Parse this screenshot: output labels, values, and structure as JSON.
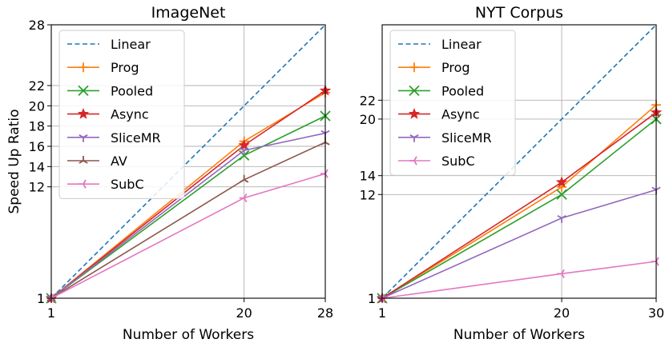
{
  "chart_data": [
    {
      "type": "line",
      "title": "ImageNet",
      "xlabel": "Number of Workers",
      "ylabel": "Speed Up Ratio",
      "x": [
        1,
        20,
        28
      ],
      "xlim": [
        1,
        28
      ],
      "ylim": [
        1,
        28
      ],
      "xticks": [
        "1",
        "20",
        "28"
      ],
      "yticks": [
        "1",
        "12",
        "14",
        "16",
        "18",
        "20",
        "22",
        "28"
      ],
      "grid": true,
      "legend_position": "upper-left",
      "series": [
        {
          "name": "Linear",
          "color": "#1f77b4",
          "dashed": true,
          "marker": "none",
          "values": [
            1,
            20,
            28
          ]
        },
        {
          "name": "Prog",
          "color": "#ff7f0e",
          "marker": "plus",
          "values": [
            1,
            16.5,
            21.3
          ]
        },
        {
          "name": "Pooled",
          "color": "#2ca02c",
          "marker": "x",
          "values": [
            1,
            15.1,
            19.0
          ]
        },
        {
          "name": "Async",
          "color": "#d62728",
          "marker": "star",
          "values": [
            1,
            16.1,
            21.5
          ]
        },
        {
          "name": "SliceMR",
          "color": "#9467bd",
          "marker": "tri-down",
          "values": [
            1,
            15.6,
            17.3
          ]
        },
        {
          "name": "AV",
          "color": "#8c564b",
          "marker": "tri-up",
          "values": [
            1,
            12.7,
            16.4
          ]
        },
        {
          "name": "SubC",
          "color": "#e377c2",
          "marker": "tri-left",
          "values": [
            1,
            10.9,
            13.3
          ]
        }
      ]
    },
    {
      "type": "line",
      "title": "NYT Corpus",
      "xlabel": "Number of Workers",
      "ylabel": "",
      "x": [
        1,
        20,
        30
      ],
      "xlim": [
        1,
        30
      ],
      "ylim": [
        1,
        30
      ],
      "xticks": [
        "1",
        "20",
        "30"
      ],
      "yticks": [
        "1",
        "12",
        "14",
        "20",
        "22"
      ],
      "grid": true,
      "legend_position": "upper-left",
      "series": [
        {
          "name": "Linear",
          "color": "#1f77b4",
          "dashed": true,
          "marker": "none",
          "values": [
            1,
            20,
            30
          ]
        },
        {
          "name": "Prog",
          "color": "#ff7f0e",
          "marker": "plus",
          "values": [
            1,
            12.8,
            21.5
          ]
        },
        {
          "name": "Pooled",
          "color": "#2ca02c",
          "marker": "x",
          "values": [
            1,
            12.0,
            20.0
          ]
        },
        {
          "name": "Async",
          "color": "#d62728",
          "marker": "star",
          "values": [
            1,
            13.3,
            20.7
          ]
        },
        {
          "name": "SliceMR",
          "color": "#9467bd",
          "marker": "tri-down",
          "values": [
            1,
            9.5,
            12.5
          ]
        },
        {
          "name": "SubC",
          "color": "#e377c2",
          "marker": "tri-left",
          "values": [
            1,
            3.6,
            4.9
          ]
        }
      ]
    }
  ]
}
